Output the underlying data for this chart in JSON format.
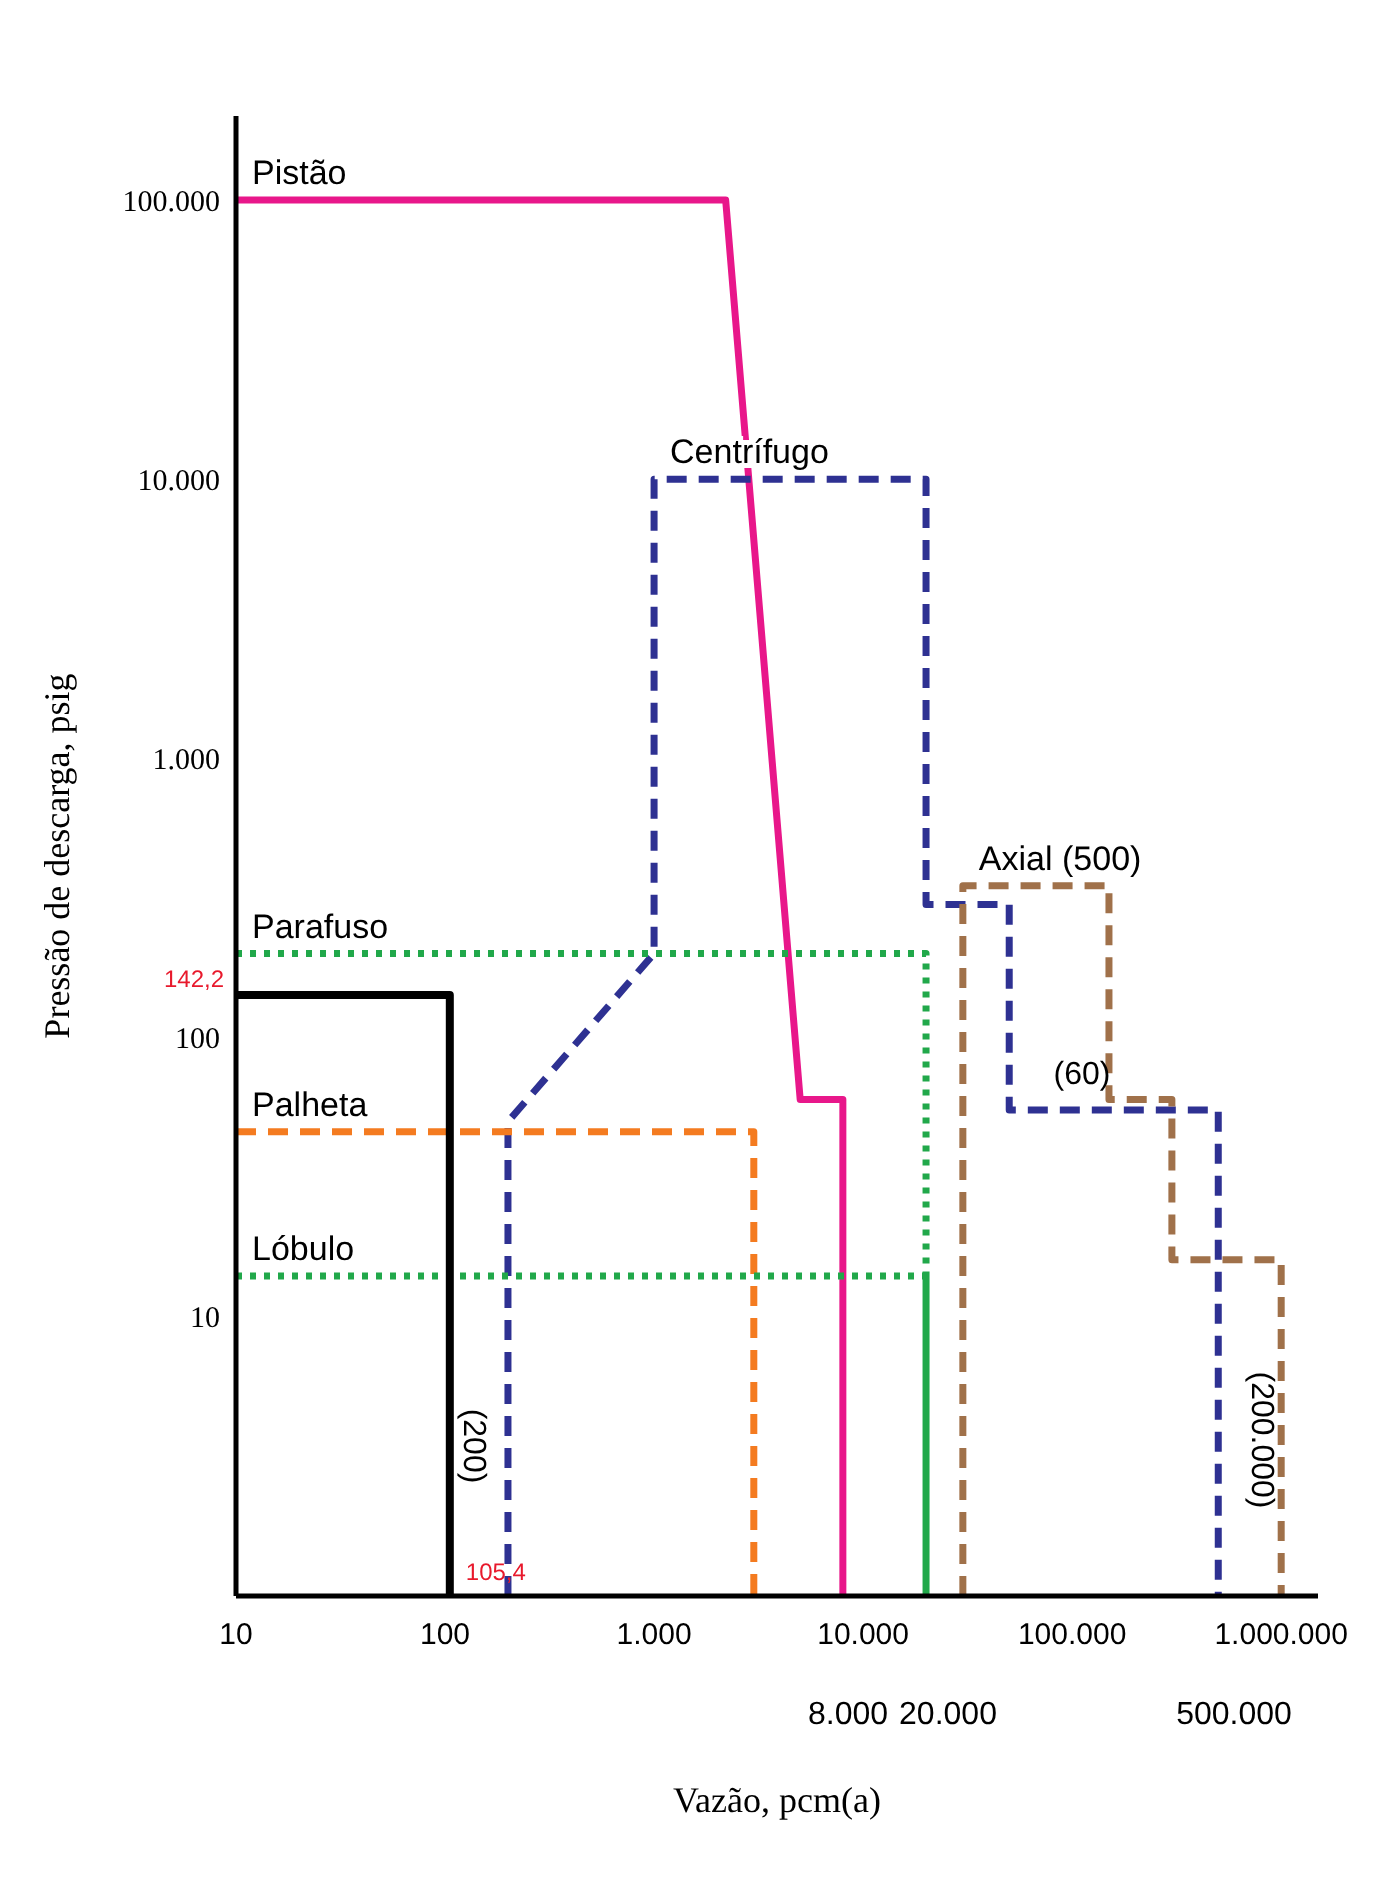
{
  "chart_data": {
    "type": "line",
    "xlabel": "Vazão, pcm(a)",
    "ylabel": "Pressão de descarga, psig",
    "log": "xy",
    "grid": false,
    "legend": false,
    "marker": "none",
    "xlim": [
      10,
      1500000
    ],
    "ylim": [
      1,
      200000
    ],
    "xticks": [
      10,
      100,
      {
        "value": 1000,
        "label": "1.000"
      },
      {
        "value": 10000,
        "label": "10.000"
      },
      {
        "value": 100000,
        "label": "100.000"
      },
      {
        "value": 1000000,
        "label": "1.000.000"
      }
    ],
    "yticks": [
      10,
      100,
      {
        "value": 1000,
        "label": "1.000"
      },
      {
        "value": 10000,
        "label": "10.000"
      },
      {
        "value": 100000,
        "label": "100.000"
      }
    ],
    "series": [
      {
        "name": "Pistão",
        "color": "#e8178a",
        "line_style": "solid",
        "x": [
          10,
          2200,
          5000,
          8000,
          8000
        ],
        "values": [
          100000,
          100000,
          60,
          60,
          1
        ]
      },
      {
        "name": "Centrífugo",
        "color": "#2e3192",
        "line_style": "dashed",
        "x": [
          200,
          200,
          1000,
          1000,
          20000,
          20000,
          50000,
          50000,
          500000,
          500000
        ],
        "values": [
          1,
          50,
          200,
          10000,
          10000,
          300,
          300,
          55,
          55,
          1
        ]
      },
      {
        "name": "Axial (500)",
        "color": "#a0714a",
        "line_style": "dashed",
        "x": [
          30000,
          30000,
          150000,
          150000,
          300000,
          300000,
          1000000,
          1000000
        ],
        "values": [
          1,
          350,
          350,
          60,
          60,
          16,
          16,
          1
        ]
      },
      {
        "name": "Parafuso",
        "color": "#21a84a",
        "line_style": "dotted",
        "x": [
          10,
          20000,
          20000
        ],
        "values": [
          200,
          200,
          14
        ]
      },
      {
        "name": "Palheta",
        "color": "#f47b20",
        "line_style": "dashed",
        "x": [
          10,
          3000,
          3000
        ],
        "values": [
          46,
          46,
          1
        ]
      },
      {
        "name": "Lóbulo",
        "color": "#21a84a",
        "line_style": "dotted",
        "x": [
          10,
          20000
        ],
        "values": [
          14,
          14
        ]
      },
      {
        "color": "#000000",
        "line_style": "solid",
        "x": [
          10,
          105.4,
          105.4
        ],
        "values": [
          142.2,
          142.2,
          1
        ]
      },
      {
        "color": "#21a84a",
        "line_style": "solid",
        "x": [
          20000,
          20000
        ],
        "values": [
          14,
          1
        ]
      }
    ],
    "annotations": [
      {
        "text": "142,2",
        "x": 10,
        "y": 142.2
      },
      {
        "text": "105,4",
        "x": 105.4,
        "y": 1
      },
      "(200)",
      "(60)",
      "(200.000)",
      "8.000",
      "20.000",
      "500.000"
    ]
  }
}
